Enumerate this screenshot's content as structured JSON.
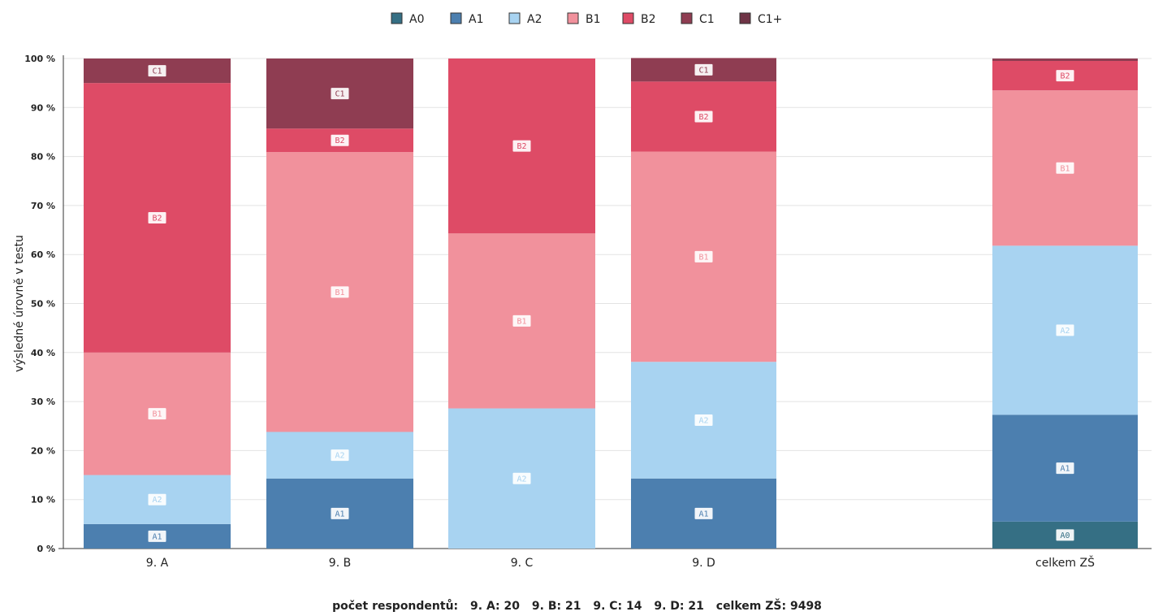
{
  "chart_data": {
    "type": "bar",
    "stacked": true,
    "ylabel": "výsledné úrovně v testu",
    "ylim": [
      0,
      100
    ],
    "yticks": [
      "0 %",
      "10 %",
      "20 %",
      "30 %",
      "40 %",
      "50 %",
      "60 %",
      "70 %",
      "80 %",
      "90 %",
      "100 %"
    ],
    "categories": [
      "9. A",
      "9. B",
      "9. C",
      "9. D",
      "celkem ZŠ"
    ],
    "legend_position": "top",
    "series": [
      {
        "name": "A0",
        "color": "#356f84",
        "values": [
          0,
          0,
          0,
          0,
          5.5
        ]
      },
      {
        "name": "A1",
        "color": "#4c7faf",
        "values": [
          5,
          14.3,
          0,
          14.3,
          21.8
        ]
      },
      {
        "name": "A2",
        "color": "#a8d3f1",
        "values": [
          10,
          9.5,
          28.6,
          23.8,
          34.5
        ]
      },
      {
        "name": "B1",
        "color": "#f1919c",
        "values": [
          25,
          57.1,
          35.7,
          42.9,
          31.7
        ]
      },
      {
        "name": "B2",
        "color": "#de4b66",
        "values": [
          55,
          4.8,
          35.7,
          14.3,
          6.0
        ]
      },
      {
        "name": "C1",
        "color": "#8f3d52",
        "values": [
          5,
          14.3,
          0,
          4.8,
          0.5
        ]
      },
      {
        "name": "C1+",
        "color": "#6f3446",
        "values": [
          0,
          0,
          0,
          0,
          0
        ]
      }
    ]
  },
  "footer": {
    "label": "počet respondentů:",
    "counts": [
      "9. A: 20",
      "9. B: 21",
      "9. C: 14",
      "9. D: 21",
      "celkem ZŠ: 9498"
    ]
  }
}
